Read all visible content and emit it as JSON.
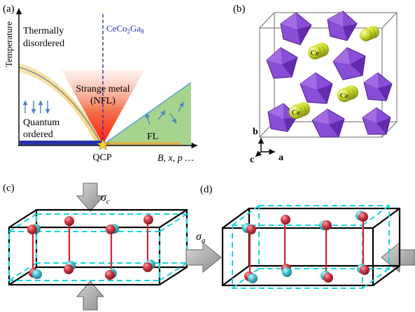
{
  "panel_a": {
    "label": "(a)",
    "y_axis_label": "Temperature",
    "x_axis_label": "B, x, p …",
    "compound_name": "CeCo",
    "compound_sub1": "2",
    "compound_mid": "Ga",
    "compound_sub2": "8",
    "thermally_line1": "Thermally",
    "thermally_line2": "disordered",
    "strange_line1": "Strange metal",
    "strange_line2": "(NFL)",
    "quantum_line1": "Quantum",
    "quantum_line2": "ordered",
    "fl_label": "FL",
    "qcp_label": "QCP"
  },
  "panel_b": {
    "label": "(b)",
    "atom_label": "Ce",
    "axis_b": "b",
    "axis_c": "c",
    "axis_a": "a"
  },
  "panel_c": {
    "label": "(c)",
    "sigma_symbol": "σ",
    "sigma_sub": "c"
  },
  "panel_d": {
    "label": "(d)",
    "sigma_symbol": "σ",
    "sigma_sub": "a"
  },
  "colors": {
    "nfl_red": "#e0201a",
    "fl_green": "#9fd08a",
    "fl_line": "#5a9fd4",
    "dashed_blue": "#2b2fb0",
    "polyhedron_purple": "#7a3cc8",
    "ce_yellow": "#c8dc2c",
    "dash_cyan": "#18d4e0",
    "atom_red": "#cc2b3a",
    "atom_cyan": "#3ec4d4",
    "arrow_gray": "#b8b8b8"
  }
}
